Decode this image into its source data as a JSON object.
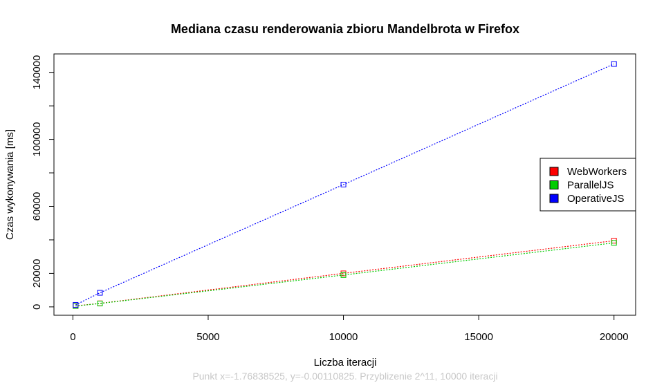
{
  "chart_data": {
    "type": "line",
    "title": "Mediana czasu renderowania zbioru Mandelbrota w Firefox",
    "xlabel": "Liczba iteracji",
    "ylabel": "Czas wykonywania [ms]",
    "xlim": [
      -700,
      20800
    ],
    "ylim": [
      -5000,
      151000
    ],
    "xticks": [
      0,
      5000,
      10000,
      15000,
      20000
    ],
    "xtick_labels": [
      "0",
      "5000",
      "10000",
      "15000",
      "20000"
    ],
    "yticks": [
      0,
      20000,
      60000,
      100000,
      140000
    ],
    "ytick_labels": [
      "0",
      "20000",
      "60000",
      "100000",
      "140000"
    ],
    "ymajor_minor_ticks": [
      40000,
      80000,
      120000
    ],
    "grid": false,
    "legend_position": "right",
    "series": [
      {
        "name": "WebWorkers",
        "color": "#ff0000",
        "x": [
          100,
          1000,
          10000,
          20000
        ],
        "y": [
          600,
          2100,
          20000,
          39500
        ]
      },
      {
        "name": "ParallelJS",
        "color": "#00cd00",
        "x": [
          100,
          1000,
          10000,
          20000
        ],
        "y": [
          500,
          2000,
          19000,
          38200
        ]
      },
      {
        "name": "OperativeJS",
        "color": "#0000ff",
        "x": [
          100,
          1000,
          10000,
          20000
        ],
        "y": [
          1200,
          8400,
          73000,
          145000
        ]
      }
    ],
    "footer": "Punkt x=-1.76838525, y=-0.00110825. Przyblizenie 2^11, 10000 iteracji"
  }
}
